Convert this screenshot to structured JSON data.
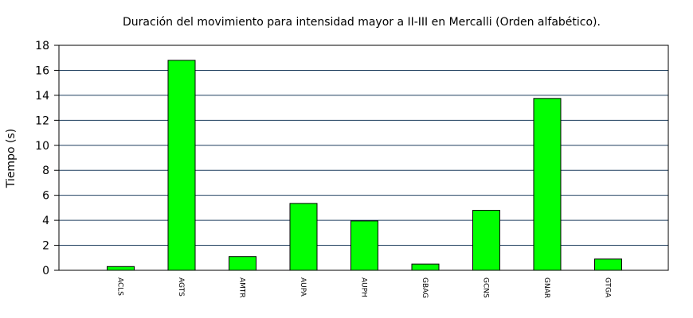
{
  "chart_data": {
    "type": "bar",
    "title": "Duración del movimiento para intensidad mayor a II-III en Mercalli (Orden alfabético).",
    "xlabel": "",
    "ylabel": "Tiempo (s)",
    "categories": [
      "ACLS",
      "AGTS",
      "AMTR",
      "AUPA",
      "AUPH",
      "GBAG",
      "GCNS",
      "GNAR",
      "GTGA"
    ],
    "values": [
      0.3,
      16.8,
      1.1,
      5.35,
      3.95,
      0.5,
      4.8,
      13.75,
      0.9
    ],
    "ylim": [
      0,
      18
    ],
    "yticks": [
      0,
      2,
      4,
      6,
      8,
      10,
      12,
      14,
      16,
      18
    ],
    "grid": true,
    "bar_color": "#00ff00",
    "grid_color": "#1f3f5f"
  }
}
